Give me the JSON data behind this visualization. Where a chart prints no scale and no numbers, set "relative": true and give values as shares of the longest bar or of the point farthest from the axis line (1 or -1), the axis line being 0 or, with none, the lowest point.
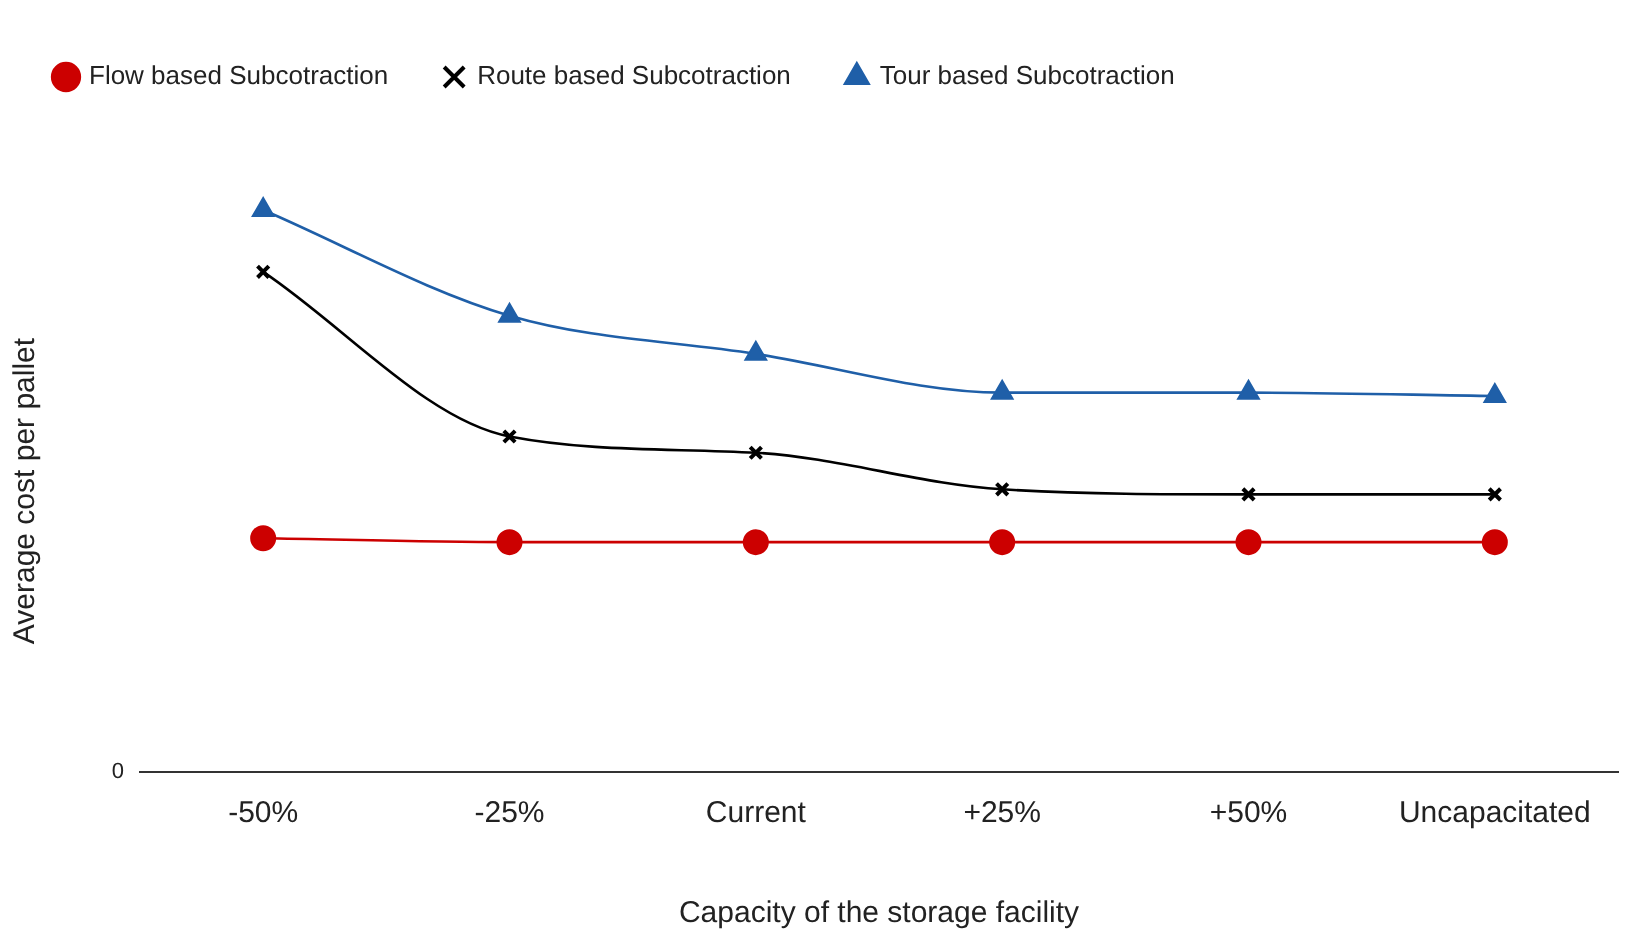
{
  "chart_data": {
    "type": "line",
    "relative": true,
    "xlabel": "Capacity of the storage facility",
    "ylabel": "Average cost per pallet",
    "categories": [
      "-50%",
      "-25%",
      "Current",
      "+25%",
      "+50%",
      "Uncapacitated"
    ],
    "series": [
      {
        "name": "Flow based Subcotraction",
        "color": "#cc0000",
        "marker": "circle",
        "values": [
          0.416,
          0.409,
          0.409,
          0.409,
          0.409,
          0.409
        ]
      },
      {
        "name": "Route based Subcotraction",
        "color": "#000000",
        "marker": "cross",
        "values": [
          0.89,
          0.597,
          0.568,
          0.503,
          0.494,
          0.494
        ]
      },
      {
        "name": "Tour based Subcotraction",
        "color": "#1f5fa8",
        "marker": "triangle",
        "values": [
          1,
          0.812,
          0.744,
          0.675,
          0.675,
          0.669
        ]
      }
    ],
    "annotations": [
      "0"
    ],
    "legend": "top",
    "grid": false
  }
}
